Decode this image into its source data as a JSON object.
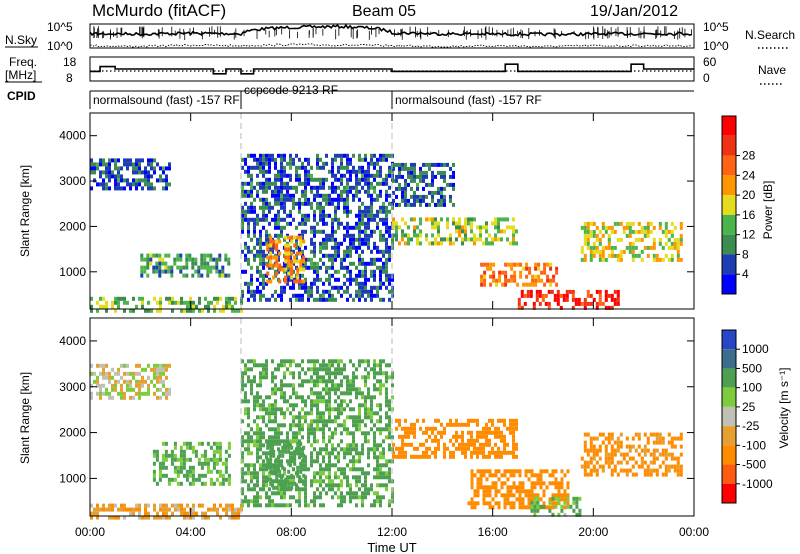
{
  "header": {
    "station": "McMurdo (fitACF)",
    "beam": "Beam 05",
    "date": "19/Jan/2012"
  },
  "noise_panel": {
    "left_label": "N.Sky",
    "right_label": "N.Search",
    "left_ticks": [
      "10^5",
      "10^0"
    ],
    "right_ticks": [
      "10^5",
      "10^0"
    ]
  },
  "freq_panel": {
    "left_label_1": "Freq.",
    "left_label_2": "[MHz]",
    "right_label": "Nave",
    "left_ticks": [
      "18",
      "8"
    ],
    "right_ticks": [
      "60",
      "0"
    ]
  },
  "cpid": {
    "label": "CPID",
    "segments": [
      {
        "start": 0.0,
        "end": 6.0,
        "name": "normalsound (fast) -157 RF"
      },
      {
        "start": 6.0,
        "end": 12.0,
        "name": "ccpcode 9213 RF"
      },
      {
        "start": 12.0,
        "end": 24.0,
        "name": "normalsound (fast) -157 RF"
      }
    ]
  },
  "power_colorbar": {
    "label": "Power [dB]",
    "colors": [
      "#0000ff",
      "#1e3cb4",
      "#3c8c50",
      "#4cb44c",
      "#e6dc1e",
      "#ff9600",
      "#ff6414",
      "#f03214",
      "#ff0000"
    ],
    "ticks": [
      "4",
      "8",
      "12",
      "16",
      "20",
      "24",
      "28"
    ]
  },
  "velocity_colorbar": {
    "label": "Velocity [m s⁻¹]",
    "colors": [
      "#2846c8",
      "#3c6e8c",
      "#4ca050",
      "#7ccc3c",
      "#c0c0b4",
      "#e6a032",
      "#ff8c00",
      "#ff5a14",
      "#ff0000"
    ],
    "ticks": [
      "1000",
      "500",
      "100",
      "25",
      "-25",
      "-100",
      "-500",
      "-1000"
    ]
  },
  "chart_data": [
    {
      "type": "line",
      "title": "",
      "xlabel": "",
      "ylabel": "N.Sky",
      "x": [
        0,
        2,
        4,
        6,
        8,
        10,
        12,
        14,
        16,
        18,
        20,
        22,
        24
      ],
      "series": [
        {
          "name": "N.Sky",
          "values": [
            1000,
            800,
            1200,
            900,
            20000,
            30000,
            1500,
            900,
            800,
            700,
            800,
            1000,
            1000
          ]
        },
        {
          "name": "N.Search",
          "values": [
            3,
            2,
            4,
            3,
            5,
            4,
            3,
            2,
            3,
            2,
            3,
            3,
            3
          ]
        }
      ],
      "yscale": "log",
      "ylim": [
        1,
        100000
      ]
    },
    {
      "type": "line",
      "title": "",
      "xlabel": "",
      "ylabel": "Freq. [MHz]",
      "x": [
        0,
        0.4,
        1.0,
        3.0,
        4.9,
        5.4,
        6.0,
        6.5,
        7.0,
        12.0,
        16.0,
        16.5,
        17.0,
        20.8,
        21.5,
        22.0,
        24.0
      ],
      "series": [
        {
          "name": "Freq.",
          "values": [
            12,
            14,
            13,
            13,
            11,
            13,
            11,
            13,
            13,
            12,
            12,
            15,
            12,
            12,
            15,
            13,
            13
          ]
        },
        {
          "name": "Nave",
          "values": [
            25,
            25,
            25,
            25,
            25,
            25,
            25,
            25,
            25,
            25,
            25,
            25,
            25,
            25,
            25,
            25,
            25
          ]
        }
      ],
      "ylim": [
        8,
        18
      ],
      "y2lim": [
        0,
        60
      ]
    },
    {
      "type": "heatmap",
      "title": "",
      "xlabel": "",
      "ylabel": "Slant Range [km]",
      "value_label": "Power [dB]",
      "x_ticks": [
        "00:00",
        "04:00",
        "08:00",
        "12:00",
        "16:00",
        "20:00",
        "00:00"
      ],
      "y_ticks": [
        "1000",
        "2000",
        "3000",
        "4000"
      ],
      "xlim": [
        0,
        24
      ],
      "ylim": [
        180,
        4500
      ],
      "regions": [
        {
          "t0": 0.0,
          "t1": 3.2,
          "r0": 2800,
          "r1": 3500,
          "value": 6
        },
        {
          "t0": 0.0,
          "t1": 6.0,
          "r0": 180,
          "r1": 450,
          "value": 12
        },
        {
          "t0": 2.0,
          "t1": 5.5,
          "r0": 900,
          "r1": 1400,
          "value": 10
        },
        {
          "t0": 6.0,
          "t1": 12.0,
          "r0": 400,
          "r1": 3600,
          "value": 6
        },
        {
          "t0": 7.0,
          "t1": 8.5,
          "r0": 800,
          "r1": 1800,
          "value": 20
        },
        {
          "t0": 12.0,
          "t1": 14.5,
          "r0": 2500,
          "r1": 3400,
          "value": 6
        },
        {
          "t0": 12.0,
          "t1": 17.0,
          "r0": 1600,
          "r1": 2200,
          "value": 14
        },
        {
          "t0": 15.5,
          "t1": 18.5,
          "r0": 700,
          "r1": 1200,
          "value": 22
        },
        {
          "t0": 17.0,
          "t1": 21.0,
          "r0": 200,
          "r1": 600,
          "value": 28
        },
        {
          "t0": 19.5,
          "t1": 23.5,
          "r0": 1300,
          "r1": 2100,
          "value": 16
        }
      ]
    },
    {
      "type": "heatmap",
      "title": "",
      "xlabel": "Time UT",
      "ylabel": "Slant Range [km]",
      "value_label": "Velocity [m s⁻¹]",
      "x_ticks": [
        "00:00",
        "04:00",
        "08:00",
        "12:00",
        "16:00",
        "20:00",
        "00:00"
      ],
      "y_ticks": [
        "1000",
        "2000",
        "3000",
        "4000"
      ],
      "xlim": [
        0,
        24
      ],
      "ylim": [
        180,
        4500
      ],
      "regions": [
        {
          "t0": 0.0,
          "t1": 3.2,
          "r0": 2800,
          "r1": 3500,
          "value": 0
        },
        {
          "t0": 0.0,
          "t1": 6.0,
          "r0": 180,
          "r1": 450,
          "value": -80
        },
        {
          "t0": 2.5,
          "t1": 5.5,
          "r0": 900,
          "r1": 1800,
          "value": 120
        },
        {
          "t0": 6.0,
          "t1": 12.0,
          "r0": 400,
          "r1": 3600,
          "value": 150
        },
        {
          "t0": 7.0,
          "t1": 8.5,
          "r0": 800,
          "r1": 1800,
          "value": 300
        },
        {
          "t0": 12.0,
          "t1": 17.0,
          "r0": 1500,
          "r1": 2300,
          "value": -200
        },
        {
          "t0": 15.0,
          "t1": 19.0,
          "r0": 400,
          "r1": 1200,
          "value": -300
        },
        {
          "t0": 17.5,
          "t1": 19.5,
          "r0": 200,
          "r1": 600,
          "value": 100
        },
        {
          "t0": 19.5,
          "t1": 23.5,
          "r0": 1100,
          "r1": 2000,
          "value": -150
        }
      ]
    }
  ]
}
